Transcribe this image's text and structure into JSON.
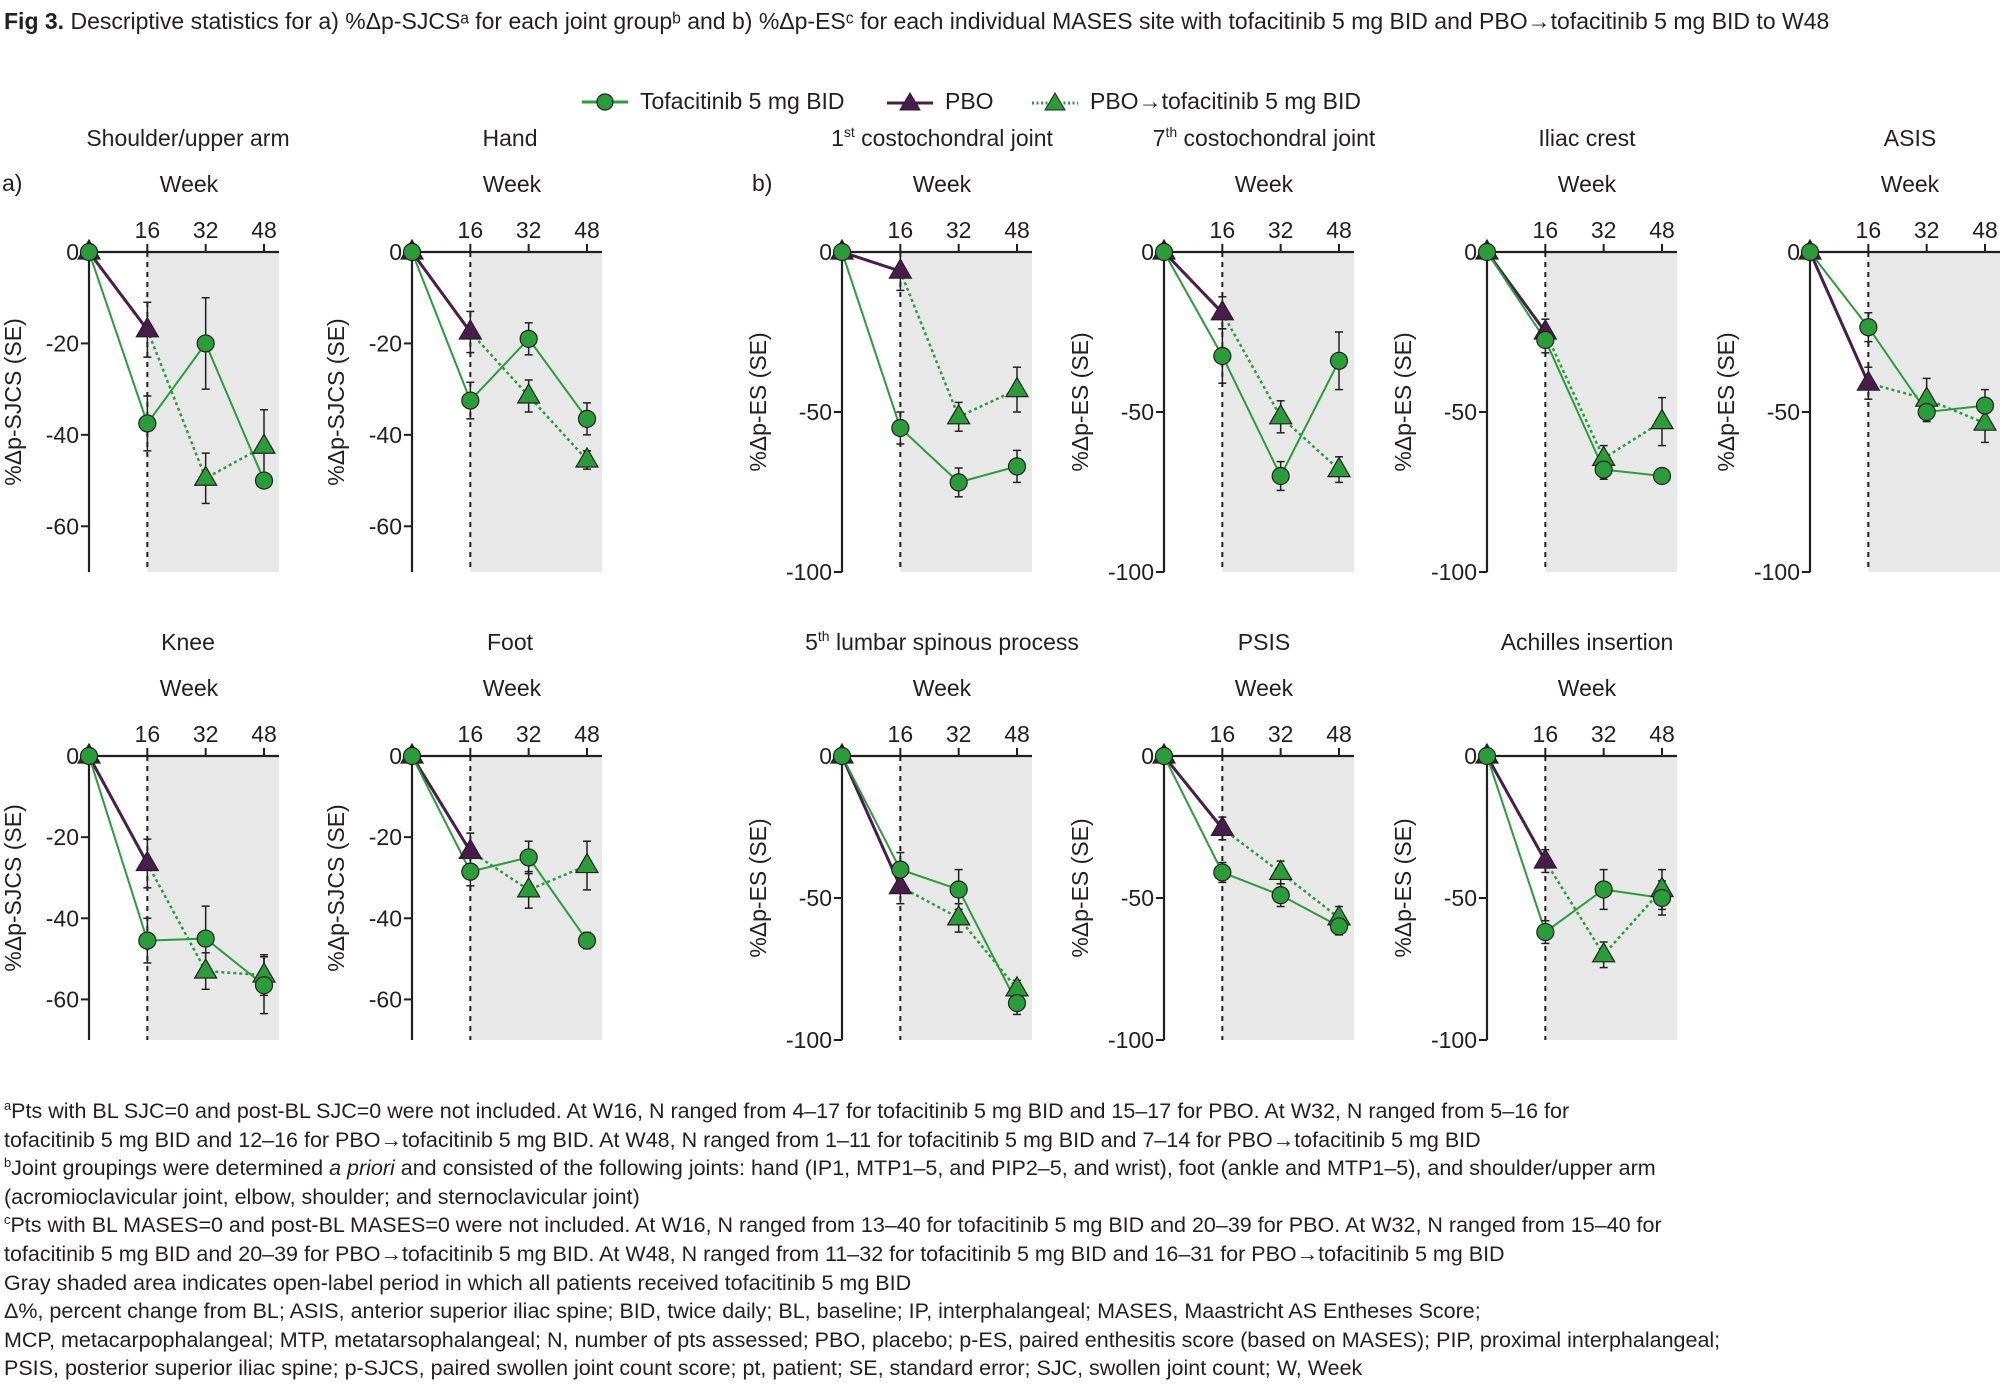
{
  "title": {
    "prefix": "Fig 3.",
    "text": " Descriptive statistics for a) %Δp-SJCSᵃ for each joint groupᵇ and b) %Δp-ESᶜ for each individual MASES site with tofacitinib 5 mg BID and PBO→tofacitinib 5 mg BID to W48"
  },
  "legend": [
    {
      "label": "Tofacitinib 5 mg BID",
      "marker": "circle",
      "line": "solid",
      "color": "#1e9a3c"
    },
    {
      "label": "PBO",
      "marker": "triangle",
      "line": "solid",
      "color": "#4b1a4f"
    },
    {
      "label": "PBO→tofacitinib 5 mg BID",
      "marker": "triangle",
      "line": "dotted",
      "color": "#1e9a3c"
    }
  ],
  "section_labels": {
    "a": "a)",
    "b": "b)"
  },
  "colors": {
    "tofa": "#2a9d3a",
    "pbo": "#4a1c4e",
    "shade": "#e8e8e8",
    "axis": "#231f20"
  },
  "chart_data": [
    {
      "type": "line",
      "section": "a",
      "title": "Shoulder/upper arm",
      "xlabel": "Week",
      "ylabel": "%Δp-SJCS (SE)",
      "x": [
        0,
        16,
        32,
        48
      ],
      "xticks": [
        16,
        32,
        48
      ],
      "ylim": [
        -70,
        0
      ],
      "yticks": [
        0,
        -20,
        -40,
        -60
      ],
      "shade_from": 16,
      "series": [
        {
          "name": "Tofacitinib 5 mg BID",
          "x": [
            0,
            16,
            32,
            48
          ],
          "y": [
            0,
            -37.5,
            -20,
            -50
          ],
          "se": [
            0,
            6,
            10,
            0
          ]
        },
        {
          "name": "PBO",
          "x": [
            0,
            16
          ],
          "y": [
            0,
            -17
          ],
          "se": [
            0,
            6
          ]
        },
        {
          "name": "PBO→tofacitinib 5 mg BID",
          "x": [
            16,
            32,
            48
          ],
          "y": [
            -17,
            -49.5,
            -42.5
          ],
          "se": [
            0,
            5.5,
            8
          ]
        }
      ]
    },
    {
      "type": "line",
      "section": "a",
      "title": "Hand",
      "xlabel": "Week",
      "ylabel": "%Δp-SJCS (SE)",
      "x": [
        0,
        16,
        32,
        48
      ],
      "xticks": [
        16,
        32,
        48
      ],
      "ylim": [
        -70,
        0
      ],
      "yticks": [
        0,
        -20,
        -40,
        -60
      ],
      "shade_from": 16,
      "series": [
        {
          "name": "Tofacitinib 5 mg BID",
          "x": [
            0,
            16,
            32,
            48
          ],
          "y": [
            0,
            -32.5,
            -19,
            -36.5
          ],
          "se": [
            0,
            4,
            3.5,
            3.5
          ]
        },
        {
          "name": "PBO",
          "x": [
            0,
            16
          ],
          "y": [
            0,
            -17.5
          ],
          "se": [
            0,
            4.5
          ]
        },
        {
          "name": "PBO→tofacitinib 5 mg BID",
          "x": [
            16,
            32,
            48
          ],
          "y": [
            -17.5,
            -31.5,
            -45.5
          ],
          "se": [
            0,
            3.5,
            2
          ]
        }
      ]
    },
    {
      "type": "line",
      "section": "b",
      "title": "1st costochondral joint",
      "title_sup": "st",
      "title_base": "1",
      "title_rest": " costochondral joint",
      "xlabel": "Week",
      "ylabel": "%Δp-ES (SE)",
      "x": [
        0,
        16,
        32,
        48
      ],
      "xticks": [
        16,
        32,
        48
      ],
      "ylim": [
        -100,
        0
      ],
      "yticks": [
        0,
        -50,
        -100
      ],
      "shade_from": 16,
      "series": [
        {
          "name": "Tofacitinib 5 mg BID",
          "x": [
            0,
            16,
            32,
            48
          ],
          "y": [
            0,
            -55,
            -72,
            -67
          ],
          "se": [
            0,
            5,
            4.5,
            5
          ]
        },
        {
          "name": "PBO",
          "x": [
            0,
            16
          ],
          "y": [
            0,
            -6
          ],
          "se": [
            0,
            6
          ]
        },
        {
          "name": "PBO→tofacitinib 5 mg BID",
          "x": [
            16,
            32,
            48
          ],
          "y": [
            -6,
            -51.5,
            -43
          ],
          "se": [
            0,
            4.5,
            7
          ]
        }
      ]
    },
    {
      "type": "line",
      "section": "b",
      "title": "7th costochondral joint",
      "title_base": "7",
      "title_sup": "th",
      "title_rest": " costochondral joint",
      "xlabel": "Week",
      "ylabel": "%Δp-ES (SE)",
      "x": [
        0,
        16,
        32,
        48
      ],
      "xticks": [
        16,
        32,
        48
      ],
      "ylim": [
        -100,
        0
      ],
      "yticks": [
        0,
        -50,
        -100
      ],
      "shade_from": 16,
      "series": [
        {
          "name": "Tofacitinib 5 mg BID",
          "x": [
            0,
            16,
            32,
            48
          ],
          "y": [
            0,
            -32.5,
            -70,
            -34
          ],
          "se": [
            0,
            8.5,
            4.5,
            9
          ]
        },
        {
          "name": "PBO",
          "x": [
            0,
            16
          ],
          "y": [
            0,
            -19
          ],
          "se": [
            0,
            5
          ]
        },
        {
          "name": "PBO→tofacitinib 5 mg BID",
          "x": [
            16,
            32,
            48
          ],
          "y": [
            -19,
            -51.5,
            -68
          ],
          "se": [
            0,
            5,
            4
          ]
        }
      ]
    },
    {
      "type": "line",
      "section": "b",
      "title": "Iliac crest",
      "xlabel": "Week",
      "ylabel": "%Δp-ES (SE)",
      "x": [
        0,
        16,
        32,
        48
      ],
      "xticks": [
        16,
        32,
        48
      ],
      "ylim": [
        -100,
        0
      ],
      "yticks": [
        0,
        -50,
        -100
      ],
      "shade_from": 16,
      "series": [
        {
          "name": "Tofacitinib 5 mg BID",
          "x": [
            0,
            16,
            32,
            48
          ],
          "y": [
            0,
            -27.5,
            -68,
            -70
          ],
          "se": [
            0,
            4,
            3,
            2
          ]
        },
        {
          "name": "PBO",
          "x": [
            0,
            16
          ],
          "y": [
            0,
            -25
          ],
          "se": [
            0,
            4
          ]
        },
        {
          "name": "PBO→tofacitinib 5 mg BID",
          "x": [
            16,
            32,
            48
          ],
          "y": [
            -25,
            -64.5,
            -53
          ],
          "se": [
            0,
            4,
            7.5
          ]
        }
      ]
    },
    {
      "type": "line",
      "section": "b",
      "title": "ASIS",
      "xlabel": "Week",
      "ylabel": "%Δp-ES (SE)",
      "x": [
        0,
        16,
        32,
        48
      ],
      "xticks": [
        16,
        32,
        48
      ],
      "ylim": [
        -100,
        0
      ],
      "yticks": [
        0,
        -50,
        -100
      ],
      "shade_from": 16,
      "series": [
        {
          "name": "Tofacitinib 5 mg BID",
          "x": [
            0,
            16,
            32,
            48
          ],
          "y": [
            0,
            -23.5,
            -50,
            -48
          ],
          "se": [
            0,
            4.5,
            3,
            5
          ]
        },
        {
          "name": "PBO",
          "x": [
            0,
            16
          ],
          "y": [
            0,
            -41
          ],
          "se": [
            0,
            5
          ]
        },
        {
          "name": "PBO→tofacitinib 5 mg BID",
          "x": [
            16,
            32,
            48
          ],
          "y": [
            -41,
            -46,
            -53.5
          ],
          "se": [
            0,
            6.5,
            6
          ]
        }
      ]
    },
    {
      "type": "line",
      "section": "a",
      "title": "Knee",
      "xlabel": "Week",
      "ylabel": "%Δp-SJCS (SE)",
      "x": [
        0,
        16,
        32,
        48
      ],
      "xticks": [
        16,
        32,
        48
      ],
      "ylim": [
        -70,
        0
      ],
      "yticks": [
        0,
        -20,
        -40,
        -60
      ],
      "shade_from": 16,
      "series": [
        {
          "name": "Tofacitinib 5 mg BID",
          "x": [
            0,
            16,
            32,
            48
          ],
          "y": [
            0,
            -45.5,
            -45,
            -56.5
          ],
          "se": [
            0,
            5.5,
            8,
            7
          ]
        },
        {
          "name": "PBO",
          "x": [
            0,
            16
          ],
          "y": [
            0,
            -26.5
          ],
          "se": [
            0,
            6
          ]
        },
        {
          "name": "PBO→tofacitinib 5 mg BID",
          "x": [
            16,
            32,
            48
          ],
          "y": [
            -26.5,
            -53,
            -54
          ],
          "se": [
            0,
            4.5,
            5
          ]
        }
      ]
    },
    {
      "type": "line",
      "section": "a",
      "title": "Foot",
      "xlabel": "Week",
      "ylabel": "%Δp-SJCS (SE)",
      "x": [
        0,
        16,
        32,
        48
      ],
      "xticks": [
        16,
        32,
        48
      ],
      "ylim": [
        -70,
        0
      ],
      "yticks": [
        0,
        -20,
        -40,
        -60
      ],
      "shade_from": 16,
      "series": [
        {
          "name": "Tofacitinib 5 mg BID",
          "x": [
            0,
            16,
            32,
            48
          ],
          "y": [
            0,
            -28.5,
            -25,
            -45.5
          ],
          "se": [
            0,
            3.5,
            4,
            2
          ]
        },
        {
          "name": "PBO",
          "x": [
            0,
            16
          ],
          "y": [
            0,
            -23.5
          ],
          "se": [
            0,
            4.5
          ]
        },
        {
          "name": "PBO→tofacitinib 5 mg BID",
          "x": [
            16,
            32,
            48
          ],
          "y": [
            -23.5,
            -33,
            -27
          ],
          "se": [
            0,
            4.5,
            6
          ]
        }
      ]
    },
    {
      "type": "line",
      "section": "b",
      "title": "5th lumbar spinous process",
      "title_base": "5",
      "title_sup": "th",
      "title_rest": " lumbar spinous process",
      "xlabel": "Week",
      "ylabel": "%Δp-ES (SE)",
      "x": [
        0,
        16,
        32,
        48
      ],
      "xticks": [
        16,
        32,
        48
      ],
      "ylim": [
        -100,
        0
      ],
      "yticks": [
        0,
        -50,
        -100
      ],
      "shade_from": 16,
      "series": [
        {
          "name": "Tofacitinib 5 mg BID",
          "x": [
            0,
            16,
            32,
            48
          ],
          "y": [
            0,
            -40,
            -47,
            -87
          ],
          "se": [
            0,
            6,
            7,
            4
          ]
        },
        {
          "name": "PBO",
          "x": [
            0,
            16
          ],
          "y": [
            0,
            -46
          ],
          "se": [
            0,
            6
          ]
        },
        {
          "name": "PBO→tofacitinib 5 mg BID",
          "x": [
            16,
            32,
            48
          ],
          "y": [
            -46,
            -57,
            -82
          ],
          "se": [
            0,
            5,
            3
          ]
        }
      ]
    },
    {
      "type": "line",
      "section": "b",
      "title": "PSIS",
      "xlabel": "Week",
      "ylabel": "%Δp-ES (SE)",
      "x": [
        0,
        16,
        32,
        48
      ],
      "xticks": [
        16,
        32,
        48
      ],
      "ylim": [
        -100,
        0
      ],
      "yticks": [
        0,
        -50,
        -100
      ],
      "shade_from": 16,
      "series": [
        {
          "name": "Tofacitinib 5 mg BID",
          "x": [
            0,
            16,
            32,
            48
          ],
          "y": [
            0,
            -41,
            -49,
            -60
          ],
          "se": [
            0,
            3.5,
            4,
            3
          ]
        },
        {
          "name": "PBO",
          "x": [
            0,
            16
          ],
          "y": [
            0,
            -25.5
          ],
          "se": [
            0,
            4
          ]
        },
        {
          "name": "PBO→tofacitinib 5 mg BID",
          "x": [
            16,
            32,
            48
          ],
          "y": [
            -25.5,
            -41,
            -57
          ],
          "se": [
            0,
            4,
            4
          ]
        }
      ]
    },
    {
      "type": "line",
      "section": "b",
      "title": "Achilles insertion",
      "xlabel": "Week",
      "ylabel": "%Δp-ES (SE)",
      "x": [
        0,
        16,
        32,
        48
      ],
      "xticks": [
        16,
        32,
        48
      ],
      "ylim": [
        -100,
        0
      ],
      "yticks": [
        0,
        -50,
        -100
      ],
      "shade_from": 16,
      "series": [
        {
          "name": "Tofacitinib 5 mg BID",
          "x": [
            0,
            16,
            32,
            48
          ],
          "y": [
            0,
            -62,
            -47,
            -50
          ],
          "se": [
            0,
            4,
            7,
            6
          ]
        },
        {
          "name": "PBO",
          "x": [
            0,
            16
          ],
          "y": [
            0,
            -37
          ],
          "se": [
            0,
            4
          ]
        },
        {
          "name": "PBO→tofacitinib 5 mg BID",
          "x": [
            16,
            32,
            48
          ],
          "y": [
            -37,
            -70,
            -47
          ],
          "se": [
            0,
            4.5,
            7
          ]
        }
      ]
    }
  ],
  "footnotes": [
    {
      "sup": "a",
      "text": "Pts with BL SJC=0 and post-BL SJC=0 were not included. At W16, N ranged from 4–17 for tofacitinib 5 mg BID and 15–17 for PBO. At W32, N ranged from 5–16 for"
    },
    {
      "sup": "",
      "text": "tofacitinib 5 mg BID and 12–16 for PBO→tofacitinib 5 mg BID. At W48, N ranged from 1–11 for tofacitinib 5 mg BID and 7–14 for PBO→tofacitinib 5 mg BID"
    },
    {
      "sup": "b",
      "text": "Joint groupings were determined ",
      "italic": "a priori",
      "text2": " and consisted of the following joints: hand (IP1, MTP1–5, and PIP2–5, and wrist), foot (ankle and MTP1–5), and shoulder/upper arm"
    },
    {
      "sup": "",
      "text": "(acromioclavicular joint, elbow, shoulder; and sternoclavicular joint)"
    },
    {
      "sup": "c",
      "text": "Pts with BL MASES=0 and post-BL MASES=0 were not included. At W16, N ranged from 13–40 for tofacitinib 5 mg BID and 20–39 for PBO. At W32, N ranged from 15–40 for"
    },
    {
      "sup": "",
      "text": "tofacitinib 5 mg BID and 20–39 for PBO→tofacitinib 5 mg BID. At W48, N ranged from 11–32 for tofacitinib 5 mg BID and 16–31 for PBO→tofacitinib 5 mg BID"
    },
    {
      "sup": "",
      "text": "Gray shaded area indicates open-label period in which all patients received tofacitinib 5 mg BID"
    },
    {
      "sup": "",
      "text": "Δ%, percent change from BL; ASIS, anterior superior iliac spine; BID, twice daily; BL, baseline; IP, interphalangeal; MASES, Maastricht AS Entheses Score;"
    },
    {
      "sup": "",
      "text": "MCP, metacarpophalangeal; MTP, metatarsophalangeal; N, number of pts assessed; PBO, placebo; p-ES, paired enthesitis score (based on MASES); PIP, proximal interphalangeal;"
    },
    {
      "sup": "",
      "text": "PSIS, posterior superior iliac spine; p-SJCS, paired swollen joint count score; pt, patient; SE, standard error; SJC, swollen joint count; W, Week"
    }
  ]
}
